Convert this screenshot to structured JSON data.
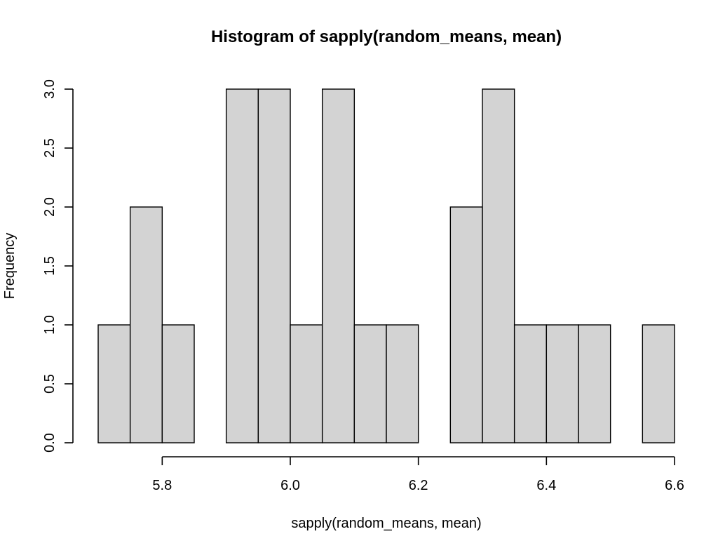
{
  "chart_data": {
    "type": "bar",
    "title": "Histogram of sapply(random_means, mean)",
    "xlabel": "sapply(random_means, mean)",
    "ylabel": "Frequency",
    "bin_edges": [
      5.7,
      5.75,
      5.8,
      5.85,
      5.9,
      5.95,
      6.0,
      6.05,
      6.1,
      6.15,
      6.2,
      6.25,
      6.3,
      6.35,
      6.4,
      6.45,
      6.5,
      6.55,
      6.6
    ],
    "values": [
      1,
      2,
      1,
      0,
      3,
      3,
      1,
      3,
      1,
      1,
      0,
      2,
      3,
      1,
      1,
      1,
      0,
      1
    ],
    "xlim": [
      5.7,
      6.6
    ],
    "ylim": [
      0,
      3
    ],
    "x_ticks": [
      "5.8",
      "6.0",
      "6.2",
      "6.4",
      "6.6"
    ],
    "y_ticks": [
      "0.0",
      "0.5",
      "1.0",
      "1.5",
      "2.0",
      "2.5",
      "3.0"
    ],
    "bar_color": "#d3d3d3",
    "edge_color": "#000000",
    "grid": false
  }
}
